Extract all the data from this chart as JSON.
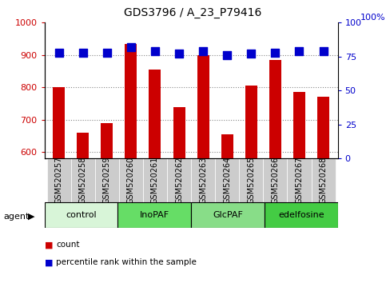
{
  "title": "GDS3796 / A_23_P79416",
  "samples": [
    "GSM520257",
    "GSM520258",
    "GSM520259",
    "GSM520260",
    "GSM520261",
    "GSM520262",
    "GSM520263",
    "GSM520264",
    "GSM520265",
    "GSM520266",
    "GSM520267",
    "GSM520268"
  ],
  "counts": [
    800,
    660,
    690,
    935,
    855,
    740,
    900,
    655,
    805,
    885,
    785,
    770
  ],
  "percentiles": [
    78,
    78,
    78,
    82,
    79,
    77,
    79,
    76,
    77,
    78,
    79,
    79
  ],
  "groups": [
    {
      "label": "control",
      "start": 0,
      "end": 3,
      "color": "#d8f5d8"
    },
    {
      "label": "InoPAF",
      "start": 3,
      "end": 6,
      "color": "#66dd66"
    },
    {
      "label": "GlcPAF",
      "start": 6,
      "end": 9,
      "color": "#88dd88"
    },
    {
      "label": "edelfosine",
      "start": 9,
      "end": 12,
      "color": "#44cc44"
    }
  ],
  "ylim_left": [
    580,
    1000
  ],
  "ylim_right": [
    0,
    100
  ],
  "yticks_left": [
    600,
    700,
    800,
    900,
    1000
  ],
  "yticks_right": [
    0,
    25,
    50,
    75,
    100
  ],
  "bar_color": "#cc0000",
  "dot_color": "#0000cc",
  "grid_color": "#888888",
  "plot_bg": "#ffffff",
  "tick_box_color": "#cccccc",
  "bar_width": 0.5,
  "dot_size": 45,
  "legend_items": [
    {
      "label": "count",
      "color": "#cc0000"
    },
    {
      "label": "percentile rank within the sample",
      "color": "#0000cc"
    }
  ]
}
